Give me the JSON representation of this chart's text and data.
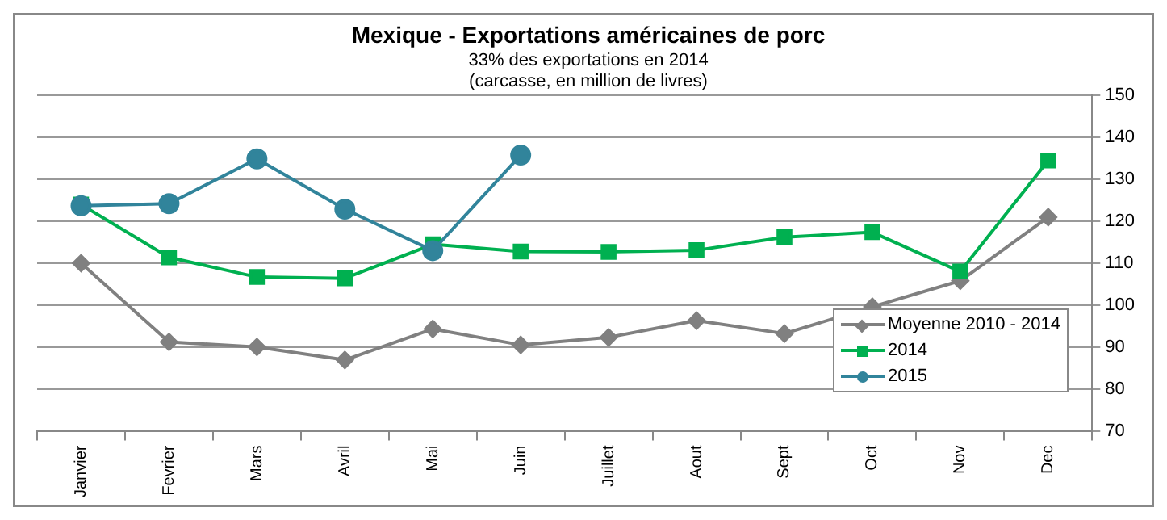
{
  "chart_data": {
    "type": "line",
    "title": "Mexique - Exportations américaines de porc",
    "subtitle": "33% des exportations en 2014\n(carcasse, en million de livres)",
    "categories": [
      "Janvier",
      "Fevrier",
      "Mars",
      "Avril",
      "Mai",
      "Juin",
      "Juillet",
      "Aout",
      "Sept",
      "Oct",
      "Nov",
      "Dec"
    ],
    "series": [
      {
        "name": "Moyenne 2010 - 2014",
        "color": "#808080",
        "marker": "diamond",
        "values": [
          110.0,
          91.2,
          90.0,
          86.9,
          94.3,
          90.5,
          92.3,
          96.3,
          93.2,
          99.6,
          105.8,
          121.0
        ]
      },
      {
        "name": "2014",
        "color": "#00b050",
        "marker": "square",
        "values": [
          124.0,
          111.4,
          106.7,
          106.4,
          114.5,
          112.8,
          112.7,
          113.1,
          116.2,
          117.4,
          108.0,
          134.5
        ]
      },
      {
        "name": "2015",
        "color": "#31849b",
        "marker": "circle",
        "values": [
          123.7,
          124.2,
          134.9,
          122.9,
          113.0,
          135.8,
          null,
          null,
          null,
          null,
          null,
          null
        ]
      }
    ],
    "ylim": [
      70,
      150
    ],
    "yticks": [
      70,
      80,
      90,
      100,
      110,
      120,
      130,
      140,
      150
    ],
    "grid": "y",
    "legend": "bottom right"
  }
}
